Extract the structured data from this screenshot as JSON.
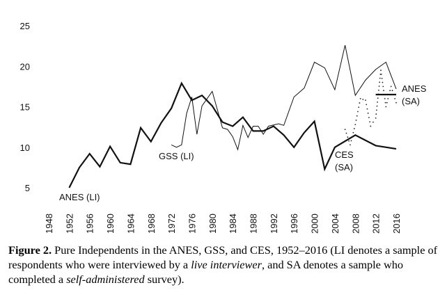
{
  "chart_data": {
    "type": "line",
    "title": "",
    "xlabel": "",
    "ylabel": "",
    "xlim": [
      1948,
      2016
    ],
    "ylim": [
      5,
      25
    ],
    "grid": false,
    "x_ticks": [
      "1948",
      "1952",
      "1956",
      "1960",
      "1964",
      "1968",
      "1972",
      "1976",
      "1980",
      "1984",
      "1988",
      "1992",
      "1996",
      "2000",
      "2004",
      "2008",
      "2012",
      "2016"
    ],
    "y_ticks": [
      "5",
      "10",
      "15",
      "20",
      "25"
    ],
    "series": [
      {
        "name": "ANES (LI)",
        "style": "thick",
        "x": [
          1952,
          1954,
          1956,
          1958,
          1960,
          1962,
          1964,
          1966,
          1968,
          1970,
          1972,
          1974,
          1976,
          1978,
          1980,
          1982,
          1984,
          1986,
          1988,
          1990,
          1992,
          1994,
          1996,
          1998,
          2000,
          2002,
          2004,
          2008,
          2012,
          2016
        ],
        "y": [
          5.0,
          7.5,
          9.2,
          7.6,
          10.1,
          8.1,
          7.9,
          12.4,
          10.7,
          13.0,
          14.8,
          17.9,
          15.8,
          16.4,
          15.1,
          13.1,
          12.6,
          13.7,
          12.0,
          12.0,
          12.6,
          11.5,
          10.0,
          11.8,
          13.2,
          7.3,
          10.0,
          11.5,
          10.2,
          9.8
        ]
      },
      {
        "name": "GSS (LI)",
        "style": "thin",
        "x": [
          1972,
          1973,
          1974,
          1975,
          1976,
          1977,
          1978,
          1980,
          1982,
          1983,
          1984,
          1985,
          1986,
          1987,
          1988,
          1989,
          1990,
          1991,
          1993,
          1994,
          1996,
          1998,
          2000,
          2002,
          2004,
          2006,
          2008,
          2010,
          2012,
          2014,
          2016
        ],
        "y": [
          10.3,
          10.0,
          10.3,
          14.2,
          16.2,
          11.6,
          15.1,
          16.9,
          12.4,
          12.2,
          11.3,
          9.7,
          12.7,
          11.2,
          12.6,
          12.6,
          11.6,
          12.6,
          12.9,
          12.7,
          16.2,
          17.3,
          20.5,
          19.8,
          17.1,
          22.6,
          16.4,
          18.3,
          19.6,
          20.5,
          17.2
        ]
      },
      {
        "name": "CES (SA)",
        "style": "dotted",
        "x": [
          2006,
          2007,
          2008,
          2009,
          2010,
          2011,
          2012,
          2013,
          2014,
          2015,
          2016
        ],
        "y": [
          12.2,
          10.3,
          12.8,
          16.0,
          15.8,
          12.6,
          13.6,
          19.5,
          15.0,
          17.5,
          15.5
        ]
      },
      {
        "name": "ANES (SA)",
        "style": "thick",
        "x": [
          2012,
          2016
        ],
        "y": [
          16.5,
          16.5
        ]
      }
    ],
    "annotations": [
      {
        "id": "anes-li",
        "lines": [
          "ANES (LI)"
        ]
      },
      {
        "id": "gss-li",
        "lines": [
          "GSS (LI)"
        ]
      },
      {
        "id": "ces-sa",
        "lines": [
          "CES",
          "(SA)"
        ]
      },
      {
        "id": "anes-sa",
        "lines": [
          "ANES",
          "(SA)"
        ]
      }
    ]
  },
  "caption": {
    "label": "Figure 2.",
    "part1": " Pure Independents in the ANES, GSS, and CES, 1952–2016 (LI denotes a sample of respondents who were interviewed by a ",
    "italic1": "live interviewer",
    "part2": ", and SA denotes a sample who completed a ",
    "italic2": "self-administered",
    "part3": " survey)."
  }
}
